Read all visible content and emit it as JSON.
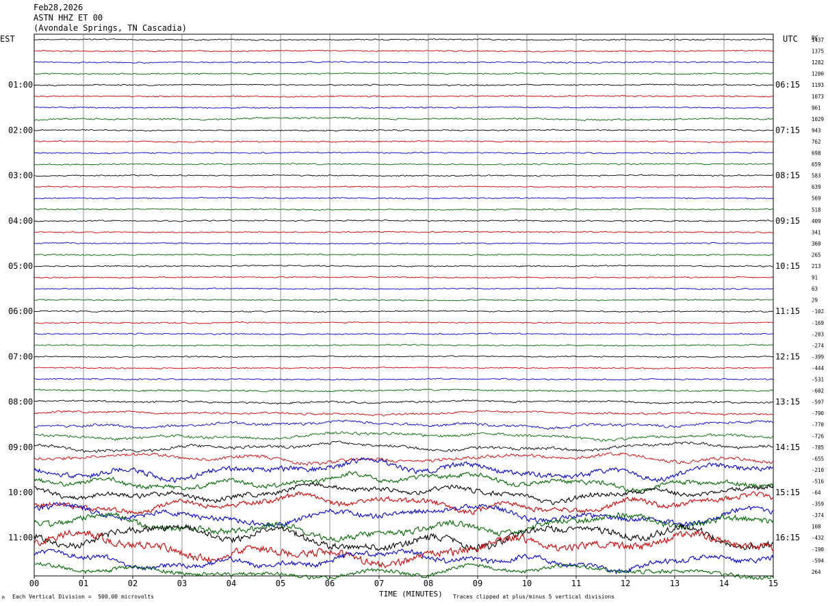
{
  "header": {
    "date": "Feb28,2026",
    "station": "ASTN HHZ ET 00",
    "location": "(Avondale Springs, TN Cascadia)"
  },
  "left_tz_label": "EST",
  "right_tz_label": "UTC",
  "dc_label": "DC",
  "footer": {
    "scale_note": "Each Vertical Division =  500.00 microvolts",
    "clip_note": "Traces clipped at plus/minus 5 vertical divisions",
    "corner_mark": "M"
  },
  "colors": {
    "black": "#000000",
    "red": "#cc0000",
    "blue": "#0000cc",
    "green": "#006600",
    "grid": "#777777"
  },
  "chart_data": {
    "type": "line",
    "title": "",
    "xlabel": "TIME (MINUTES)",
    "ylabel": "",
    "xlim": [
      0,
      15
    ],
    "x_ticks": [
      "00",
      "01",
      "02",
      "03",
      "04",
      "05",
      "06",
      "07",
      "08",
      "09",
      "10",
      "11",
      "12",
      "13",
      "14",
      "15"
    ],
    "rows_per_hour": 4,
    "minutes_per_row": 15,
    "trace_color_cycle": [
      "black",
      "red",
      "blue",
      "green"
    ],
    "left_hour_labels": [
      "01:00",
      "02:00",
      "03:00",
      "04:00",
      "05:00",
      "06:00",
      "07:00",
      "08:00",
      "09:00",
      "10:00",
      "11:00"
    ],
    "right_hour_labels": [
      "06:15",
      "07:15",
      "08:15",
      "09:15",
      "10:15",
      "11:15",
      "12:15",
      "13:15",
      "14:15",
      "15:15",
      "16:15"
    ],
    "dc_offsets": [
      "1437",
      "1375",
      "1282",
      "1200",
      "1193",
      "1073",
      "961",
      "1029",
      "943",
      "762",
      "698",
      "659",
      "583",
      "639",
      "569",
      "518",
      "409",
      "341",
      "360",
      "265",
      "213",
      "91",
      "63",
      "29",
      "-102",
      "-169",
      "-203",
      "-274",
      "-399",
      "-444",
      "-531",
      "-602",
      "-597",
      "-790",
      "-770",
      "-726",
      "-785",
      "-655",
      "-210",
      "-516",
      "-64",
      "-359",
      "-374",
      "108",
      "-432",
      "-190",
      "-594",
      "264"
    ],
    "activity_levels": [
      1,
      1,
      1,
      1,
      1,
      1,
      1,
      1.4,
      1,
      1,
      1,
      1,
      1,
      1,
      1,
      1,
      1,
      1,
      1,
      1,
      1,
      1,
      1,
      1,
      1,
      1,
      1,
      1,
      1,
      1,
      1,
      1.3,
      1.5,
      1.7,
      2.2,
      2.4,
      2.6,
      2.8,
      4.5,
      4,
      4.2,
      4.4,
      4.6,
      5.5,
      6,
      6.5,
      4.5,
      3.5
    ]
  }
}
